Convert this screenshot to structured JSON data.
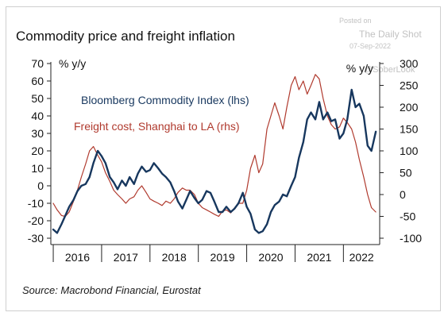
{
  "title": "Commodity price and freight inflation",
  "source": "Source: Macrobond Financial, Eurostat",
  "watermark": {
    "posted_on": "Posted on",
    "site": "The Daily Shot",
    "date": "07-Sep-2022",
    "handle": "@SoberLook"
  },
  "chart_data": {
    "type": "line",
    "left_axis_label": "% y/y",
    "right_axis_label": "% y/y",
    "ylim_left": [
      -30,
      70
    ],
    "yticks_left": [
      -30,
      -20,
      -10,
      0,
      10,
      20,
      30,
      40,
      50,
      60,
      70
    ],
    "ylim_right": [
      -100,
      300
    ],
    "yticks_right": [
      -100,
      -50,
      0,
      50,
      100,
      150,
      200,
      250,
      300
    ],
    "x_tick_labels": [
      "2016",
      "2017",
      "2018",
      "2019",
      "2020",
      "2021",
      "2022"
    ],
    "xlim": [
      2015.95,
      2022.75
    ],
    "grid": false,
    "series": [
      {
        "name": "Bloomberg Commodity Index (lhs)",
        "axis": "left",
        "color": "#17375e",
        "x": [
          2016.0,
          2016.08,
          2016.17,
          2016.25,
          2016.33,
          2016.42,
          2016.5,
          2016.58,
          2016.67,
          2016.75,
          2016.83,
          2016.92,
          2017.0,
          2017.08,
          2017.17,
          2017.25,
          2017.33,
          2017.42,
          2017.5,
          2017.58,
          2017.67,
          2017.75,
          2017.83,
          2017.92,
          2018.0,
          2018.08,
          2018.17,
          2018.25,
          2018.33,
          2018.42,
          2018.5,
          2018.58,
          2018.67,
          2018.75,
          2018.83,
          2018.92,
          2019.0,
          2019.08,
          2019.17,
          2019.25,
          2019.33,
          2019.42,
          2019.5,
          2019.58,
          2019.67,
          2019.75,
          2019.83,
          2019.92,
          2020.0,
          2020.08,
          2020.17,
          2020.25,
          2020.33,
          2020.42,
          2020.5,
          2020.58,
          2020.67,
          2020.75,
          2020.83,
          2020.92,
          2021.0,
          2021.08,
          2021.17,
          2021.25,
          2021.33,
          2021.42,
          2021.5,
          2021.58,
          2021.67,
          2021.75,
          2021.83,
          2021.92,
          2022.0,
          2022.08,
          2022.17,
          2022.25,
          2022.33,
          2022.42,
          2022.5,
          2022.58,
          2022.67
        ],
        "values": [
          -25,
          -27,
          -22,
          -17,
          -12,
          -8,
          -3,
          0,
          1,
          5,
          13,
          20,
          17,
          13,
          5,
          2,
          -2,
          3,
          0,
          5,
          1,
          7,
          11,
          8,
          9,
          13,
          10,
          7,
          5,
          2,
          -3,
          -9,
          -13,
          -8,
          -3,
          -7,
          -10,
          -8,
          -3,
          -4,
          -9,
          -15,
          -15,
          -12,
          -15,
          -13,
          -10,
          -4,
          -12,
          -16,
          -25,
          -27,
          -26,
          -22,
          -15,
          -11,
          -9,
          -5,
          -6,
          0,
          5,
          16,
          25,
          38,
          42,
          38,
          48,
          38,
          42,
          37,
          38,
          27,
          30,
          38,
          55,
          45,
          47,
          40,
          23,
          20,
          31
        ]
      },
      {
        "name": "Freight cost, Shanghai to LA (rhs)",
        "axis": "right",
        "color": "#b03a2e",
        "x": [
          2016.0,
          2016.08,
          2016.17,
          2016.25,
          2016.33,
          2016.42,
          2016.5,
          2016.58,
          2016.67,
          2016.75,
          2016.83,
          2016.92,
          2017.0,
          2017.08,
          2017.17,
          2017.25,
          2017.33,
          2017.42,
          2017.5,
          2017.58,
          2017.67,
          2017.75,
          2017.83,
          2017.92,
          2018.0,
          2018.08,
          2018.17,
          2018.25,
          2018.33,
          2018.42,
          2018.5,
          2018.58,
          2018.67,
          2018.75,
          2018.83,
          2018.92,
          2019.0,
          2019.08,
          2019.17,
          2019.25,
          2019.33,
          2019.42,
          2019.5,
          2019.58,
          2019.67,
          2019.75,
          2019.83,
          2019.92,
          2020.0,
          2020.08,
          2020.17,
          2020.25,
          2020.33,
          2020.42,
          2020.5,
          2020.58,
          2020.67,
          2020.75,
          2020.83,
          2020.92,
          2021.0,
          2021.08,
          2021.17,
          2021.25,
          2021.33,
          2021.42,
          2021.5,
          2021.58,
          2021.67,
          2021.75,
          2021.83,
          2021.92,
          2022.0,
          2022.08,
          2022.17,
          2022.25,
          2022.33,
          2022.42,
          2022.5,
          2022.58,
          2022.67
        ],
        "values": [
          -20,
          -35,
          -48,
          -50,
          -40,
          -15,
          10,
          40,
          70,
          100,
          110,
          90,
          75,
          50,
          30,
          10,
          0,
          -10,
          -20,
          -10,
          -5,
          10,
          20,
          5,
          -10,
          -15,
          -20,
          -25,
          -15,
          -20,
          -10,
          5,
          15,
          10,
          10,
          0,
          -20,
          -30,
          -35,
          -40,
          -45,
          -50,
          -38,
          -35,
          -42,
          -30,
          -20,
          -20,
          10,
          60,
          90,
          50,
          70,
          150,
          180,
          210,
          180,
          150,
          200,
          250,
          270,
          240,
          260,
          230,
          250,
          275,
          265,
          220,
          180,
          160,
          150,
          155,
          175,
          165,
          150,
          120,
          80,
          40,
          0,
          -30,
          -40
        ]
      }
    ],
    "annotations": [
      {
        "text": "Bloomberg Commodity Index (lhs)",
        "color": "#17375e"
      },
      {
        "text": "Freight cost, Shanghai to LA (rhs)",
        "color": "#b03a2e"
      }
    ]
  }
}
